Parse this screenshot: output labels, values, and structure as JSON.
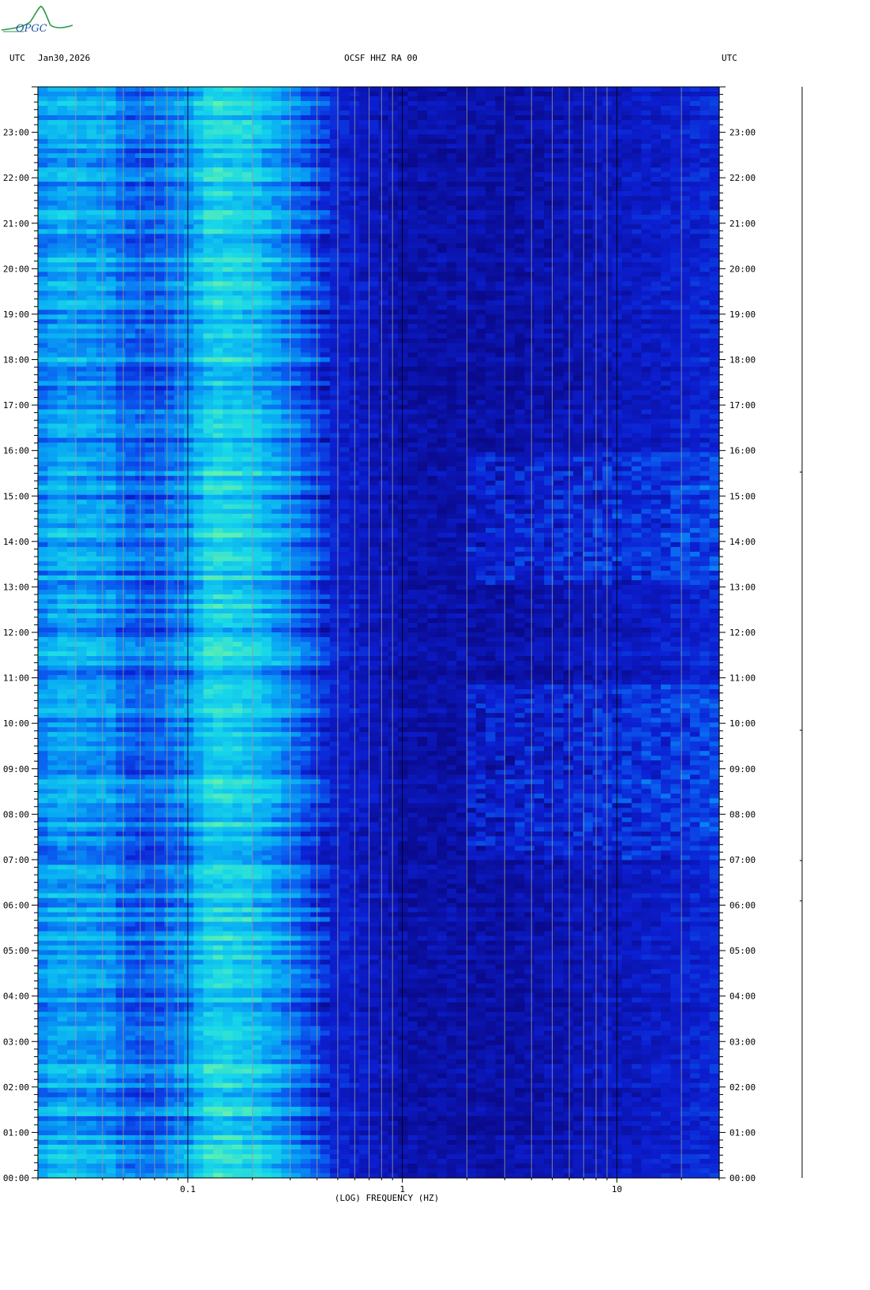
{
  "header": {
    "logo_text": "OPGC",
    "left_tz": "UTC",
    "date": "Jan30,2026",
    "station": "OCSF HHZ RA 00",
    "right_tz": "UTC"
  },
  "chart_data": {
    "type": "heatmap",
    "title": "OCSF HHZ RA 00",
    "xlabel": "(LOG) FREQUENCY (HZ)",
    "x_scale": "log",
    "xlim_hz": [
      0.02,
      30
    ],
    "x_ticks": [
      {
        "value": 0.1,
        "label": "0.1"
      },
      {
        "value": 1,
        "label": "1"
      },
      {
        "value": 10,
        "label": "10"
      }
    ],
    "ylabel": "UTC",
    "ylim_hours": [
      0,
      24
    ],
    "y_ticks": [
      {
        "hour": 0,
        "label": "00:00"
      },
      {
        "hour": 1,
        "label": "01:00"
      },
      {
        "hour": 2,
        "label": "02:00"
      },
      {
        "hour": 3,
        "label": "03:00"
      },
      {
        "hour": 4,
        "label": "04:00"
      },
      {
        "hour": 5,
        "label": "05:00"
      },
      {
        "hour": 6,
        "label": "06:00"
      },
      {
        "hour": 7,
        "label": "07:00"
      },
      {
        "hour": 8,
        "label": "08:00"
      },
      {
        "hour": 9,
        "label": "09:00"
      },
      {
        "hour": 10,
        "label": "10:00"
      },
      {
        "hour": 11,
        "label": "11:00"
      },
      {
        "hour": 12,
        "label": "12:00"
      },
      {
        "hour": 13,
        "label": "13:00"
      },
      {
        "hour": 14,
        "label": "14:00"
      },
      {
        "hour": 15,
        "label": "15:00"
      },
      {
        "hour": 16,
        "label": "16:00"
      },
      {
        "hour": 17,
        "label": "17:00"
      },
      {
        "hour": 18,
        "label": "18:00"
      },
      {
        "hour": 19,
        "label": "19:00"
      },
      {
        "hour": 20,
        "label": "20:00"
      },
      {
        "hour": 21,
        "label": "21:00"
      },
      {
        "hour": 22,
        "label": "22:00"
      },
      {
        "hour": 23,
        "label": "23:00"
      }
    ],
    "colormap": [
      "#0a0a8c",
      "#0c1fd2",
      "#0a5ef0",
      "#08a8f4",
      "#18d8e8",
      "#60f0b0"
    ],
    "band_profile": [
      {
        "f_hz": 0.02,
        "level": 0.5
      },
      {
        "f_hz": 0.025,
        "level": 0.62
      },
      {
        "f_hz": 0.045,
        "level": 0.55
      },
      {
        "f_hz": 0.05,
        "level": 0.42
      },
      {
        "f_hz": 0.07,
        "level": 0.4
      },
      {
        "f_hz": 0.1,
        "level": 0.55
      },
      {
        "f_hz": 0.13,
        "level": 0.8
      },
      {
        "f_hz": 0.2,
        "level": 0.72
      },
      {
        "f_hz": 0.3,
        "level": 0.5
      },
      {
        "f_hz": 0.45,
        "level": 0.22
      },
      {
        "f_hz": 1.0,
        "level": 0.08
      },
      {
        "f_hz": 3.0,
        "level": 0.06
      },
      {
        "f_hz": 10.0,
        "level": 0.14
      },
      {
        "f_hz": 30.0,
        "level": 0.22
      }
    ],
    "active_periods_hours": [
      [
        7.0,
        10.8
      ],
      [
        13.0,
        16.0
      ]
    ]
  }
}
